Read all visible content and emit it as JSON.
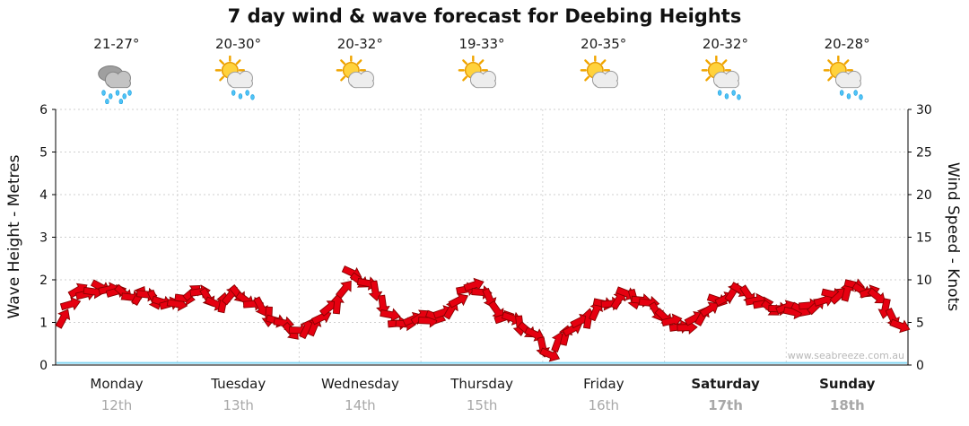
{
  "title": "7 day wind & wave forecast for Deebing Heights",
  "watermark": "www.seabreeze.com.au",
  "days": [
    {
      "name": "Monday",
      "date": "12th",
      "temp": "21-27°",
      "icon": "rain",
      "weekend": false
    },
    {
      "name": "Tuesday",
      "date": "13th",
      "temp": "20-30°",
      "icon": "sun-rain",
      "weekend": false
    },
    {
      "name": "Wednesday",
      "date": "14th",
      "temp": "20-32°",
      "icon": "sun-cloud",
      "weekend": false
    },
    {
      "name": "Thursday",
      "date": "15th",
      "temp": "19-33°",
      "icon": "sun-cloud",
      "weekend": false
    },
    {
      "name": "Friday",
      "date": "16th",
      "temp": "20-35°",
      "icon": "sun-cloud",
      "weekend": false
    },
    {
      "name": "Saturday",
      "date": "17th",
      "temp": "20-32°",
      "icon": "sun-rain",
      "weekend": true
    },
    {
      "name": "Sunday",
      "date": "18th",
      "temp": "20-28°",
      "icon": "sun-rain",
      "weekend": true
    }
  ],
  "chart_data": {
    "type": "line",
    "title": "7 day wind & wave forecast for Deebing Heights",
    "x_categories_days": [
      "Monday 12th",
      "Tuesday 13th",
      "Wednesday 14th",
      "Thursday 15th",
      "Friday 16th",
      "Saturday 17th",
      "Sunday 18th"
    ],
    "points_per_day": 8,
    "left_axis": {
      "label": "Wave Height - Metres",
      "range": [
        0,
        6
      ],
      "ticks": [
        0,
        1,
        2,
        3,
        4,
        5,
        6
      ]
    },
    "right_axis": {
      "label": "Wind Speed - Knots",
      "range": [
        0,
        30
      ],
      "ticks": [
        0,
        5,
        10,
        15,
        20,
        25,
        30
      ]
    },
    "grid": "horizontal dotted lines each metre, vertical dotted day separators",
    "legend_position": "none",
    "series": [
      {
        "name": "Wind Speed",
        "unit": "knots",
        "axis": "right",
        "style": "red directional wind arrows",
        "color": "#e60010",
        "values": [
          5.5,
          8.8,
          8.6,
          8.9,
          8.4,
          8.2,
          7.6,
          7.2,
          7.8,
          8.6,
          7.2,
          8.2,
          7.6,
          6.8,
          5.2,
          3.9,
          4.3,
          5.6,
          7.2,
          10.8,
          9.6,
          7.0,
          4.9,
          5.4,
          5.2,
          6.2,
          7.6,
          9.4,
          7.8,
          5.6,
          4.6,
          3.6,
          1.2,
          3.5,
          5.2,
          6.4,
          7.2,
          8.4,
          7.6,
          6.2,
          5.2,
          4.4,
          5.8,
          7.6,
          8.6,
          8.2,
          7.2,
          6.6,
          6.2,
          7.0,
          7.6,
          8.2,
          9.4,
          8.6,
          6.6,
          4.6
        ]
      },
      {
        "name": "Wave Height",
        "unit": "metres",
        "axis": "left",
        "style": "flat light-blue line near zero",
        "color": "#86d7f3",
        "constant_value": 0.05
      }
    ]
  }
}
